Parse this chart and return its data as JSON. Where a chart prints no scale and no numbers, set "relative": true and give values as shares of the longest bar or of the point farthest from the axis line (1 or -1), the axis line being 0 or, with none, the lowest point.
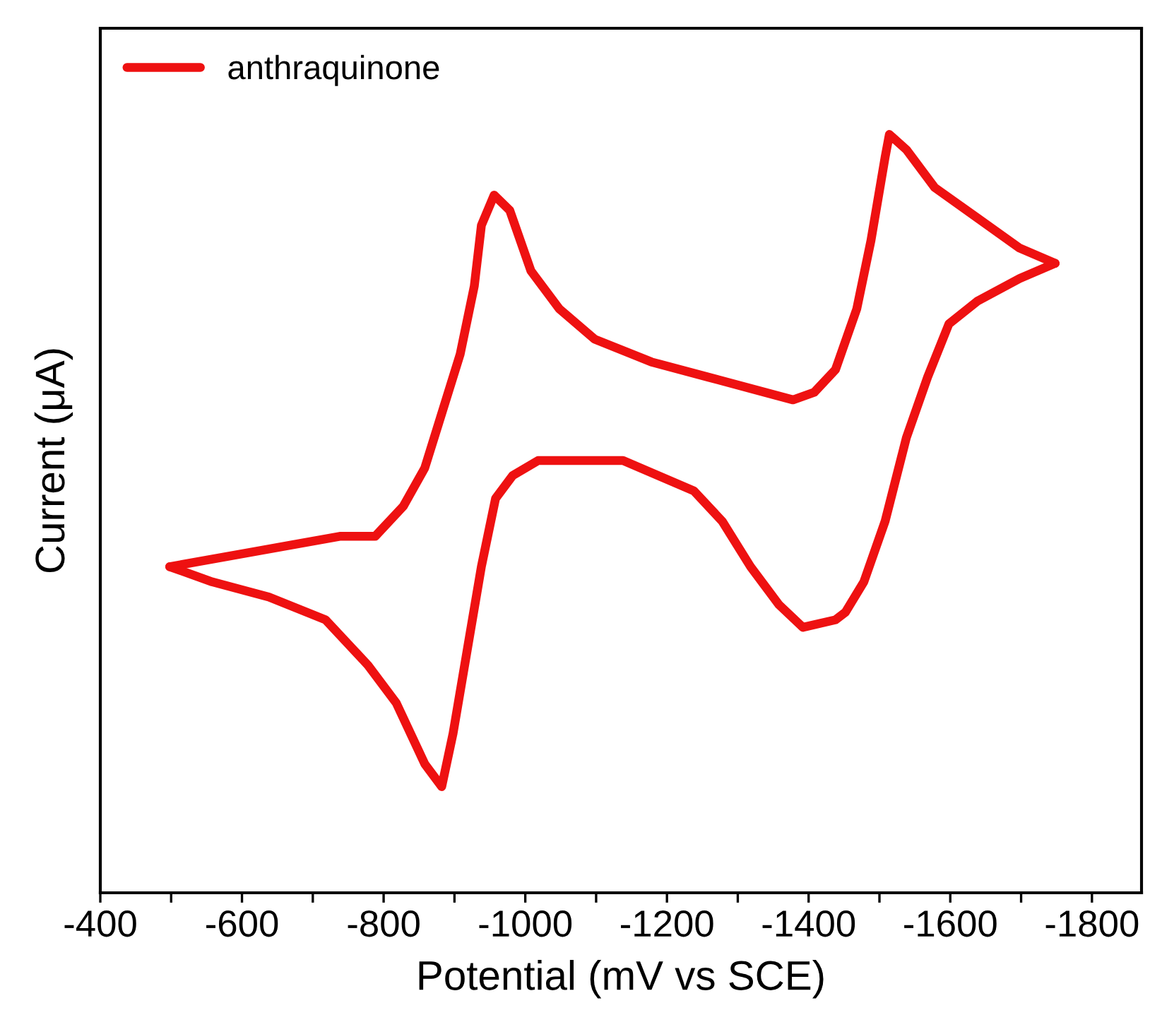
{
  "chart_data": {
    "type": "line",
    "relative": true,
    "xlabel": "Potential (mV vs SCE)",
    "ylabel": "Current (μA)",
    "xlim": [
      -400,
      -1870
    ],
    "xticks": [
      -400,
      {
        "value": -500,
        "label": null
      },
      -600,
      {
        "value": -700,
        "label": null
      },
      -800,
      {
        "value": -900,
        "label": null
      },
      -1000,
      {
        "value": -1100,
        "label": null
      },
      -1200,
      {
        "value": -1300,
        "label": null
      },
      -1400,
      {
        "value": -1500,
        "label": null
      },
      -1600,
      {
        "value": -1700,
        "label": null
      },
      -1800
    ],
    "legend": "top left",
    "grid": false,
    "line_style": "solid",
    "marker": "none",
    "series": [
      {
        "name": "anthraquinone",
        "color": "#ee1111",
        "x": [
          -498,
          -618,
          -738,
          -788,
          -828,
          -858,
          -878,
          -908,
          -928,
          -938,
          -956,
          -978,
          -1008,
          -1048,
          -1098,
          -1178,
          -1258,
          -1338,
          -1378,
          -1408,
          -1438,
          -1468,
          -1488,
          -1508,
          -1514,
          -1538,
          -1578,
          -1638,
          -1698,
          -1748
        ],
        "values": [
          0.43,
          0.45,
          0.47,
          0.47,
          0.51,
          0.56,
          0.62,
          0.71,
          0.8,
          0.88,
          0.92,
          0.9,
          0.82,
          0.77,
          0.73,
          0.7,
          0.68,
          0.66,
          0.65,
          0.66,
          0.69,
          0.77,
          0.86,
          0.97,
          1.0,
          0.98,
          0.93,
          0.89,
          0.85,
          0.83
        ]
      },
      {
        "color": "#ee1111",
        "x": [
          -1748,
          -1698,
          -1638,
          -1598,
          -1568,
          -1538,
          -1508,
          -1478,
          -1452,
          -1438,
          -1392,
          -1358,
          -1318,
          -1278,
          -1238,
          -1188,
          -1138,
          -1058,
          -1018,
          -982,
          -958,
          -938,
          -918,
          -898,
          -882,
          -858,
          -818,
          -778,
          -718,
          -638,
          -558,
          -498
        ],
        "values": [
          0.83,
          0.81,
          0.78,
          0.75,
          0.68,
          0.6,
          0.49,
          0.41,
          0.37,
          0.36,
          0.35,
          0.38,
          0.43,
          0.49,
          0.53,
          0.55,
          0.57,
          0.57,
          0.57,
          0.55,
          0.52,
          0.43,
          0.32,
          0.21,
          0.14,
          0.17,
          0.25,
          0.3,
          0.36,
          0.39,
          0.41,
          0.43
        ]
      }
    ]
  }
}
